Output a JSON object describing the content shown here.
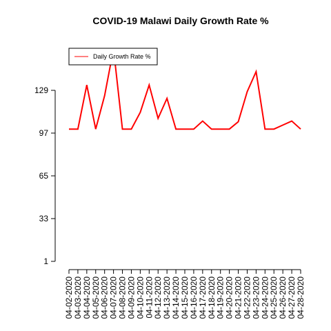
{
  "chart_data": {
    "type": "line",
    "title": "COVID-19 Malawi Daily Growth Rate %",
    "xlabel": "",
    "ylabel": "",
    "categories": [
      "04-02-2020",
      "04-03-2020",
      "04-04-2020",
      "04-05-2020",
      "04-06-2020",
      "04-07-2020",
      "04-08-2020",
      "04-09-2020",
      "04-10-2020",
      "04-11-2020",
      "04-12-2020",
      "04-13-2020",
      "04-14-2020",
      "04-15-2020",
      "04-16-2020",
      "04-17-2020",
      "04-18-2020",
      "04-19-2020",
      "04-20-2020",
      "04-21-2020",
      "04-22-2020",
      "04-23-2020",
      "04-24-2020",
      "04-25-2020",
      "04-26-2020",
      "04-27-2020",
      "04-28-2020"
    ],
    "series": [
      {
        "name": "Daily Growth Rate %",
        "color": "#ff0000",
        "values": [
          100,
          100,
          133,
          100,
          125,
          160,
          100,
          100,
          112.5,
          133,
          108,
          123,
          100,
          100,
          100,
          106,
          100,
          100,
          100,
          105.5,
          128,
          143,
          100,
          100,
          103,
          106,
          100
        ]
      }
    ],
    "yticks": [
      1,
      33,
      65,
      97,
      129
    ],
    "ylim": [
      1,
      160
    ],
    "legend": {
      "placement": "top-left",
      "entries": [
        "Daily Growth Rate %"
      ]
    },
    "grid": false
  }
}
